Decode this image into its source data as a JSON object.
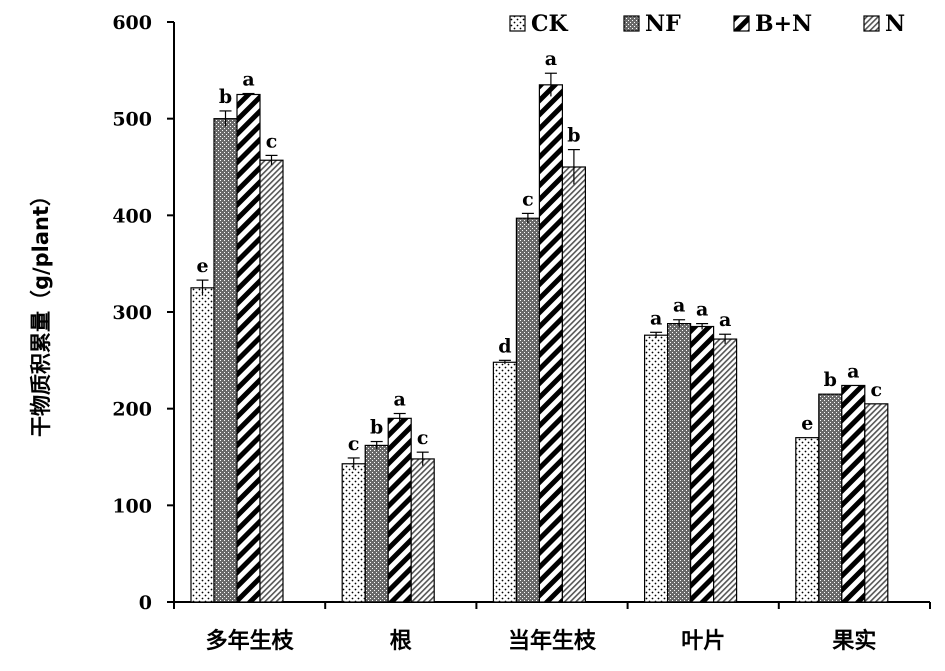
{
  "chart_data": {
    "type": "bar",
    "title": "",
    "xlabel": "",
    "ylabel": "干物质积累量（g/plant）",
    "ylim": [
      0,
      600
    ],
    "yticks": [
      0,
      100,
      200,
      300,
      400,
      500,
      600
    ],
    "grid": false,
    "legend_position": "top-right",
    "categories": [
      "多年生枝",
      "根",
      "当年生枝",
      "叶片",
      "果实"
    ],
    "series": [
      {
        "name": "CK",
        "pattern": "dots",
        "color": "#ffffff",
        "values": [
          325,
          143,
          248,
          276,
          170
        ],
        "errors": [
          8,
          6,
          2,
          3,
          0
        ],
        "labels": [
          "e",
          "c",
          "d",
          "a",
          "e"
        ]
      },
      {
        "name": "NF",
        "pattern": "dark-dots",
        "color": "#666666",
        "values": [
          500,
          162,
          397,
          288,
          215
        ],
        "errors": [
          8,
          4,
          5,
          4,
          0
        ],
        "labels": [
          "b",
          "b",
          "c",
          "a",
          "b"
        ]
      },
      {
        "name": "B+N",
        "pattern": "wide-diagonal",
        "color": "#000000",
        "values": [
          525,
          190,
          535,
          285,
          224
        ],
        "errors": [
          1,
          5,
          12,
          3,
          0
        ],
        "labels": [
          "a",
          "a",
          "a",
          "a",
          "a"
        ]
      },
      {
        "name": "N",
        "pattern": "fine-diagonal",
        "color": "#555555",
        "values": [
          457,
          148,
          450,
          272,
          205
        ],
        "errors": [
          5,
          7,
          18,
          5,
          0
        ],
        "labels": [
          "c",
          "c",
          "b",
          "a",
          "c"
        ]
      }
    ]
  }
}
